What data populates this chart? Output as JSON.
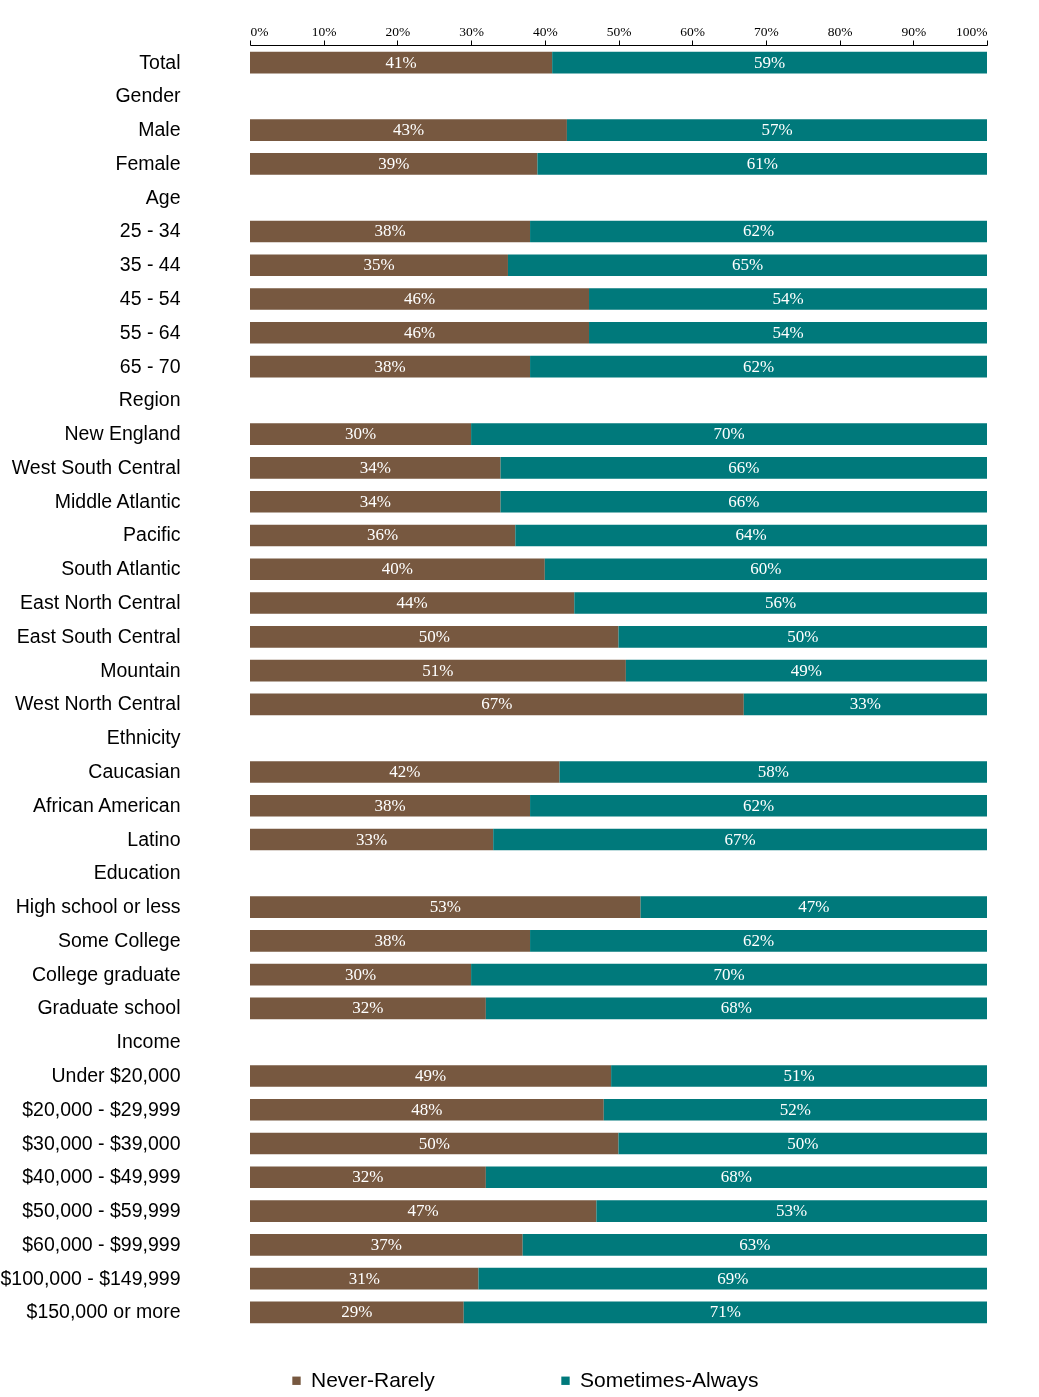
{
  "chart_data": {
    "type": "bar",
    "orientation": "horizontal",
    "stacked": true,
    "legend": "bottom",
    "grid": false,
    "categories": [
      "Total",
      "Gender",
      "Male",
      "Female",
      "Age",
      "25 - 34",
      "35 - 44",
      "45 - 54",
      "55 - 64",
      "65 - 70",
      "Region",
      "New England",
      "West South Central",
      "Middle Atlantic",
      "Pacific",
      "South Atlantic",
      "East North Central",
      "East South Central",
      "Mountain",
      "West North Central",
      "Ethnicity",
      "Caucasian",
      "African American",
      "Latino",
      "Education",
      "High school or less",
      "Some College",
      "College graduate",
      "Graduate school",
      "Income",
      "Under $20,000",
      "$20,000 - $29,999",
      "$30,000 - $39,000",
      "$40,000 - $49,999",
      "$50,000 - $59,999",
      "$60,000 - $99,999",
      "$100,000 - $149,999",
      "$150,000 or more"
    ],
    "xlim": [
      0,
      100
    ],
    "xticks": [
      {
        "value": 0,
        "label": "0%"
      },
      {
        "value": 10,
        "label": "10%"
      },
      {
        "value": 20,
        "label": "20%"
      },
      {
        "value": 30,
        "label": "30%"
      },
      {
        "value": 40,
        "label": "40%"
      },
      {
        "value": 50,
        "label": "50%"
      },
      {
        "value": 60,
        "label": "60%"
      },
      {
        "value": 70,
        "label": "70%"
      },
      {
        "value": 80,
        "label": "80%"
      },
      {
        "value": 90,
        "label": "90%"
      },
      {
        "value": 100,
        "label": "100%"
      }
    ],
    "series": [
      {
        "name": "Never-Rarely",
        "color": "#775840",
        "values": [
          41,
          null,
          43,
          39,
          null,
          38,
          35,
          46,
          46,
          38,
          null,
          30,
          34,
          34,
          36,
          40,
          44,
          50,
          51,
          67,
          null,
          42,
          38,
          33,
          null,
          53,
          38,
          30,
          32,
          null,
          49,
          48,
          50,
          32,
          47,
          37,
          31,
          29
        ],
        "value_labels": [
          "41%",
          null,
          "43%",
          "39%",
          null,
          "38%",
          "35%",
          "46%",
          "46%",
          "38%",
          null,
          "30%",
          "34%",
          "34%",
          "36%",
          "40%",
          "44%",
          "50%",
          "51%",
          "67%",
          null,
          "42%",
          "38%",
          "33%",
          null,
          "53%",
          "38%",
          "30%",
          "32%",
          null,
          "49%",
          "48%",
          "50%",
          "32%",
          "47%",
          "37%",
          "31%",
          "29%"
        ]
      },
      {
        "name": "Sometimes-Always",
        "color": "#00797b",
        "values": [
          59,
          null,
          57,
          61,
          null,
          62,
          65,
          54,
          54,
          62,
          null,
          70,
          66,
          66,
          64,
          60,
          56,
          50,
          49,
          33,
          null,
          58,
          62,
          67,
          null,
          47,
          62,
          70,
          68,
          null,
          51,
          52,
          50,
          68,
          53,
          63,
          69,
          71
        ],
        "value_labels": [
          "59%",
          null,
          "57%",
          "61%",
          null,
          "62%",
          "65%",
          "54%",
          "54%",
          "62%",
          null,
          "70%",
          "66%",
          "66%",
          "64%",
          "60%",
          "56%",
          "50%",
          "49%",
          "33%",
          null,
          "58%",
          "62%",
          "67%",
          null,
          "47%",
          "62%",
          "70%",
          "68%",
          null,
          "51%",
          "52%",
          "50%",
          "68%",
          "53%",
          "63%",
          "69%",
          "71%"
        ]
      }
    ]
  }
}
